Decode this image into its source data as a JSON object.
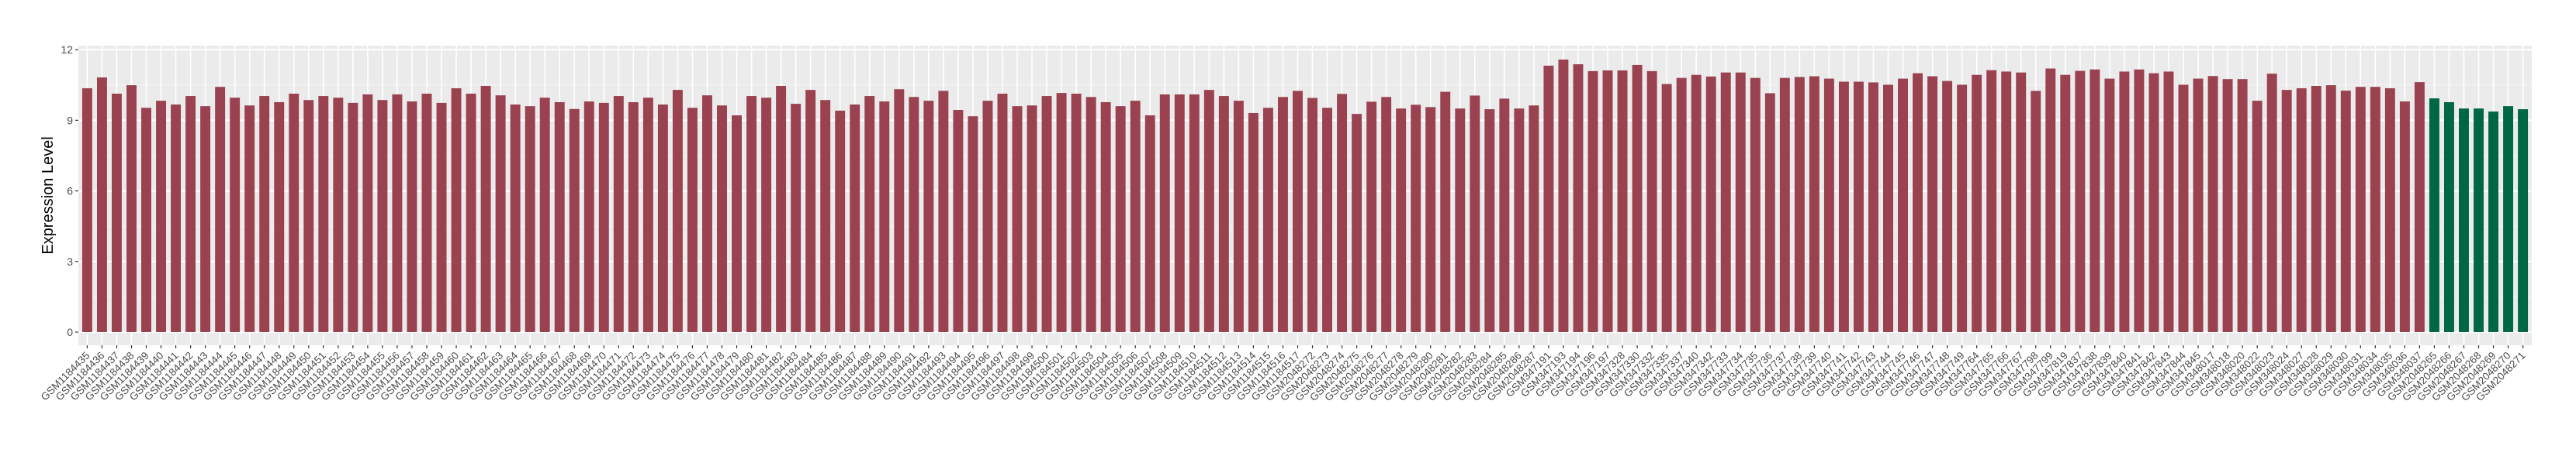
{
  "chart_data": {
    "type": "bar",
    "title": "",
    "xlabel": "",
    "ylabel": "Expression Level",
    "ylim": [
      -0.56,
      12.17
    ],
    "yticks": [
      0,
      3,
      6,
      9,
      12
    ],
    "ytick_labels": [
      "0",
      "3",
      "6",
      "9",
      "12"
    ],
    "grid": true,
    "legend": "none",
    "colors": {
      "default": "#9A4250",
      "highlight": "#006744",
      "panel": "#EBEBEB",
      "grid": "#FFFFFF"
    },
    "highlight_categories": [
      "GSM2048265",
      "GSM2048266",
      "GSM2048267",
      "GSM2048268",
      "GSM2048269",
      "GSM2048270",
      "GSM2048271"
    ],
    "categories": [
      "GSM1184435",
      "GSM1184436",
      "GSM1184437",
      "GSM1184438",
      "GSM1184439",
      "GSM1184440",
      "GSM1184441",
      "GSM1184442",
      "GSM1184443",
      "GSM1184444",
      "GSM1184445",
      "GSM1184446",
      "GSM1184447",
      "GSM1184448",
      "GSM1184449",
      "GSM1184450",
      "GSM1184451",
      "GSM1184452",
      "GSM1184453",
      "GSM1184454",
      "GSM1184455",
      "GSM1184456",
      "GSM1184457",
      "GSM1184458",
      "GSM1184459",
      "GSM1184460",
      "GSM1184461",
      "GSM1184462",
      "GSM1184463",
      "GSM1184464",
      "GSM1184465",
      "GSM1184466",
      "GSM1184467",
      "GSM1184468",
      "GSM1184469",
      "GSM1184470",
      "GSM1184471",
      "GSM1184472",
      "GSM1184473",
      "GSM1184474",
      "GSM1184475",
      "GSM1184476",
      "GSM1184477",
      "GSM1184478",
      "GSM1184479",
      "GSM1184480",
      "GSM1184481",
      "GSM1184482",
      "GSM1184483",
      "GSM1184484",
      "GSM1184485",
      "GSM1184486",
      "GSM1184487",
      "GSM1184488",
      "GSM1184489",
      "GSM1184490",
      "GSM1184491",
      "GSM1184492",
      "GSM1184493",
      "GSM1184494",
      "GSM1184495",
      "GSM1184496",
      "GSM1184497",
      "GSM1184498",
      "GSM1184499",
      "GSM1184500",
      "GSM1184501",
      "GSM1184502",
      "GSM1184503",
      "GSM1184504",
      "GSM1184505",
      "GSM1184506",
      "GSM1184507",
      "GSM1184508",
      "GSM1184509",
      "GSM1184510",
      "GSM1184511",
      "GSM1184512",
      "GSM1184513",
      "GSM1184514",
      "GSM1184515",
      "GSM1184516",
      "GSM1184517",
      "GSM2048272",
      "GSM2048273",
      "GSM2048274",
      "GSM2048275",
      "GSM2048276",
      "GSM2048277",
      "GSM2048278",
      "GSM2048279",
      "GSM2048280",
      "GSM2048281",
      "GSM2048282",
      "GSM2048283",
      "GSM2048284",
      "GSM2048285",
      "GSM2048286",
      "GSM2048287",
      "GSM347191",
      "GSM347193",
      "GSM347194",
      "GSM347196",
      "GSM347197",
      "GSM347328",
      "GSM347330",
      "GSM347332",
      "GSM347335",
      "GSM347337",
      "GSM347340",
      "GSM347342",
      "GSM347733",
      "GSM347734",
      "GSM347735",
      "GSM347736",
      "GSM347737",
      "GSM347738",
      "GSM347739",
      "GSM347740",
      "GSM347741",
      "GSM347742",
      "GSM347743",
      "GSM347744",
      "GSM347745",
      "GSM347746",
      "GSM347747",
      "GSM347748",
      "GSM347749",
      "GSM347764",
      "GSM347765",
      "GSM347766",
      "GSM347767",
      "GSM347798",
      "GSM347799",
      "GSM347819",
      "GSM347837",
      "GSM347838",
      "GSM347839",
      "GSM347840",
      "GSM347841",
      "GSM347842",
      "GSM347843",
      "GSM347844",
      "GSM347845",
      "GSM348017",
      "GSM348018",
      "GSM348020",
      "GSM348022",
      "GSM348023",
      "GSM348024",
      "GSM348027",
      "GSM348028",
      "GSM348029",
      "GSM348030",
      "GSM348031",
      "GSM348034",
      "GSM348035",
      "GSM348036",
      "GSM348037",
      "GSM2048265",
      "GSM2048266",
      "GSM2048267",
      "GSM2048268",
      "GSM2048269",
      "GSM2048270",
      "GSM2048271"
    ],
    "values": [
      10.36,
      10.82,
      10.13,
      10.49,
      9.53,
      9.83,
      9.67,
      10.03,
      9.6,
      10.42,
      9.96,
      9.63,
      10.03,
      9.77,
      10.13,
      9.86,
      10.03,
      9.96,
      9.74,
      10.1,
      9.86,
      10.1,
      9.8,
      10.13,
      9.74,
      10.36,
      10.13,
      10.46,
      10.06,
      9.67,
      9.6,
      9.96,
      9.77,
      9.48,
      9.8,
      9.74,
      10.03,
      9.77,
      9.96,
      9.67,
      10.29,
      9.53,
      10.06,
      9.63,
      9.21,
      10.03,
      9.96,
      10.46,
      9.7,
      10.29,
      9.86,
      9.41,
      9.67,
      10.03,
      9.8,
      10.32,
      9.99,
      9.83,
      10.25,
      9.44,
      9.17,
      9.83,
      10.13,
      9.6,
      9.63,
      10.03,
      10.16,
      10.13,
      9.99,
      9.77,
      9.6,
      9.83,
      9.21,
      10.1,
      10.1,
      10.1,
      10.29,
      10.03,
      9.83,
      9.31,
      9.53,
      9.99,
      10.25,
      9.95,
      9.53,
      10.12,
      9.27,
      9.79,
      9.99,
      9.5,
      9.66,
      9.56,
      10.21,
      9.5,
      10.05,
      9.47,
      9.92,
      9.5,
      9.63,
      11.32,
      11.58,
      11.38,
      11.09,
      11.12,
      11.12,
      11.35,
      11.09,
      10.54,
      10.8,
      10.93,
      10.86,
      11.03,
      11.03,
      10.8,
      10.15,
      10.8,
      10.84,
      10.87,
      10.77,
      10.64,
      10.64,
      10.61,
      10.51,
      10.77,
      11.0,
      10.87,
      10.67,
      10.51,
      10.93,
      11.13,
      11.07,
      11.03,
      10.25,
      11.2,
      10.93,
      11.1,
      11.16,
      10.77,
      11.07,
      11.16,
      11.0,
      11.07,
      10.51,
      10.77,
      10.88,
      10.75,
      10.75,
      9.83,
      10.98,
      10.29,
      10.36,
      10.46,
      10.49,
      10.26,
      10.42,
      10.42,
      10.36,
      9.8,
      10.62,
      9.93,
      9.77,
      9.5,
      9.5,
      9.37,
      9.6,
      9.47
    ]
  }
}
